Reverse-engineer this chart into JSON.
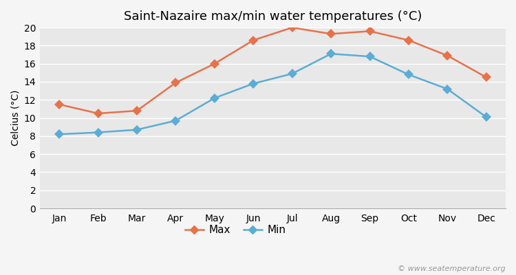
{
  "title": "Saint-Nazaire max/min water temperatures (°C)",
  "xlabel": "",
  "ylabel": "Celcius (°C)",
  "months": [
    "Jan",
    "Feb",
    "Mar",
    "Apr",
    "May",
    "Jun",
    "Jul",
    "Aug",
    "Sep",
    "Oct",
    "Nov",
    "Dec"
  ],
  "max_temps": [
    11.5,
    10.5,
    10.8,
    13.9,
    16.0,
    18.6,
    20.0,
    19.3,
    19.6,
    18.6,
    16.9,
    14.5
  ],
  "min_temps": [
    8.2,
    8.4,
    8.7,
    9.7,
    12.2,
    13.8,
    14.9,
    17.1,
    16.8,
    14.8,
    13.2,
    10.1
  ],
  "max_color": "#e8714a",
  "min_color": "#5bacd6",
  "outer_bg_color": "#f5f5f5",
  "plot_bg_color": "#e8e8e8",
  "grid_color": "#ffffff",
  "ylim": [
    0,
    20
  ],
  "yticks": [
    0,
    2,
    4,
    6,
    8,
    10,
    12,
    14,
    16,
    18,
    20
  ],
  "title_fontsize": 13,
  "axis_label_fontsize": 10,
  "tick_fontsize": 10,
  "legend_labels": [
    "Max",
    "Min"
  ],
  "watermark": "© www.seatemperature.org",
  "marker_style": "D",
  "line_width": 1.8,
  "marker_size": 7
}
